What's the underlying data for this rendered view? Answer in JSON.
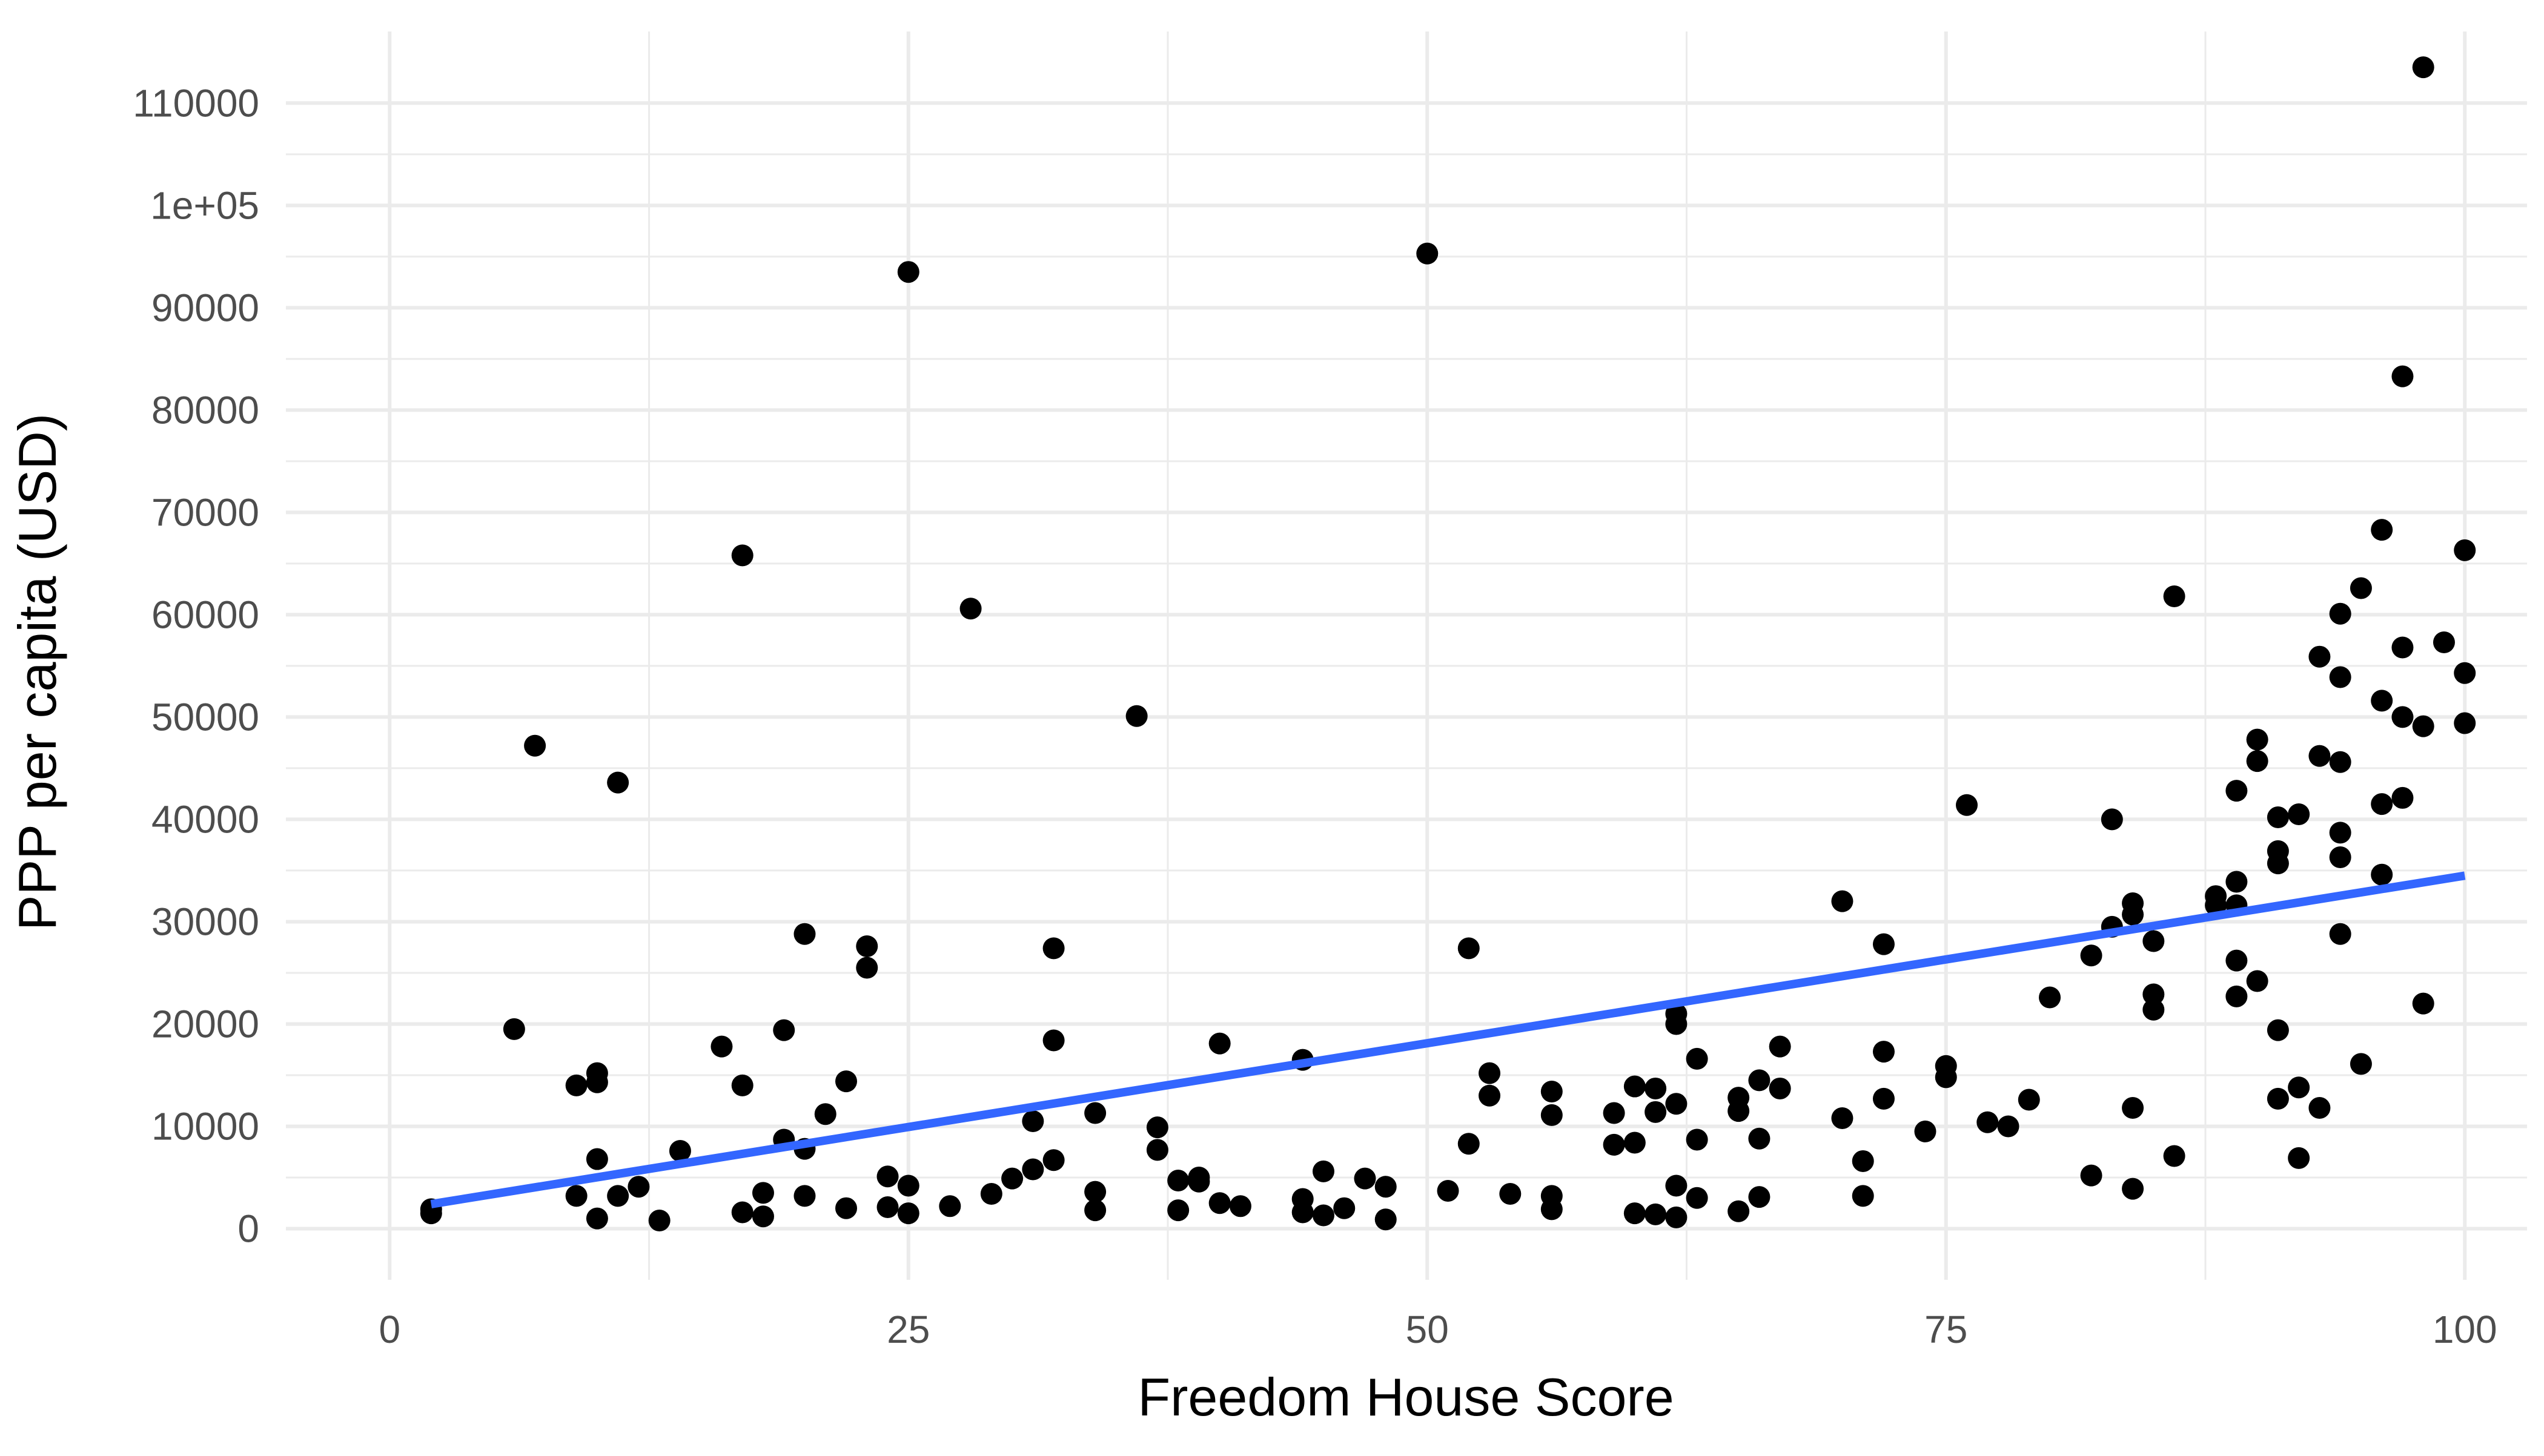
{
  "chart_data": {
    "type": "scatter",
    "title": "",
    "xlabel": "Freedom House Score",
    "ylabel": "PPP per capita (USD)",
    "xlim": [
      -5,
      103
    ],
    "ylim": [
      -5000,
      117000
    ],
    "x_ticks": [
      0,
      25,
      50,
      75,
      100
    ],
    "x_tick_labels": [
      "0",
      "25",
      "50",
      "75",
      "100"
    ],
    "y_ticks": [
      0,
      10000,
      20000,
      30000,
      40000,
      50000,
      60000,
      70000,
      80000,
      90000,
      100000,
      110000
    ],
    "y_tick_labels": [
      "0",
      "10000",
      "20000",
      "30000",
      "40000",
      "50000",
      "60000",
      "70000",
      "80000",
      "90000",
      "1e+05",
      "110000"
    ],
    "grid": true,
    "point_color": "#000000",
    "trend_color": "#3366ff",
    "trend_line": {
      "x": [
        2,
        100
      ],
      "y": [
        2400,
        34500
      ]
    },
    "points": [
      [
        2,
        1500
      ],
      [
        2,
        1900
      ],
      [
        6,
        19500
      ],
      [
        7,
        47200
      ],
      [
        9,
        14000
      ],
      [
        9,
        3200
      ],
      [
        10,
        15200
      ],
      [
        10,
        14300
      ],
      [
        10,
        6800
      ],
      [
        10,
        1000
      ],
      [
        11,
        43600
      ],
      [
        11,
        3200
      ],
      [
        12,
        4100
      ],
      [
        13,
        800
      ],
      [
        14,
        7600
      ],
      [
        16,
        17800
      ],
      [
        17,
        65800
      ],
      [
        17,
        14000
      ],
      [
        17,
        1600
      ],
      [
        18,
        3500
      ],
      [
        18,
        1200
      ],
      [
        19,
        19400
      ],
      [
        19,
        8700
      ],
      [
        20,
        28800
      ],
      [
        20,
        7800
      ],
      [
        20,
        3200
      ],
      [
        21,
        11200
      ],
      [
        22,
        14400
      ],
      [
        22,
        2000
      ],
      [
        23,
        27600
      ],
      [
        23,
        25500
      ],
      [
        24,
        5100
      ],
      [
        24,
        2100
      ],
      [
        25,
        93500
      ],
      [
        25,
        4200
      ],
      [
        25,
        1500
      ],
      [
        27,
        2200
      ],
      [
        28,
        60600
      ],
      [
        29,
        3400
      ],
      [
        30,
        4900
      ],
      [
        31,
        10500
      ],
      [
        31,
        5800
      ],
      [
        32,
        27400
      ],
      [
        32,
        18400
      ],
      [
        32,
        6700
      ],
      [
        34,
        11300
      ],
      [
        34,
        3600
      ],
      [
        34,
        1800
      ],
      [
        36,
        50100
      ],
      [
        37,
        9900
      ],
      [
        37,
        7700
      ],
      [
        38,
        4700
      ],
      [
        38,
        1800
      ],
      [
        39,
        5000
      ],
      [
        39,
        4600
      ],
      [
        40,
        18100
      ],
      [
        40,
        2500
      ],
      [
        41,
        2200
      ],
      [
        44,
        16500
      ],
      [
        44,
        2900
      ],
      [
        44,
        1600
      ],
      [
        45,
        5600
      ],
      [
        45,
        1300
      ],
      [
        46,
        2000
      ],
      [
        47,
        4900
      ],
      [
        48,
        4100
      ],
      [
        48,
        900
      ],
      [
        50,
        95300
      ],
      [
        51,
        3700
      ],
      [
        52,
        27400
      ],
      [
        52,
        8300
      ],
      [
        53,
        15200
      ],
      [
        53,
        13000
      ],
      [
        54,
        3400
      ],
      [
        56,
        13400
      ],
      [
        56,
        11100
      ],
      [
        56,
        3200
      ],
      [
        56,
        1900
      ],
      [
        59,
        11300
      ],
      [
        59,
        8200
      ],
      [
        60,
        13900
      ],
      [
        60,
        8400
      ],
      [
        60,
        1500
      ],
      [
        61,
        13700
      ],
      [
        61,
        11400
      ],
      [
        61,
        1400
      ],
      [
        62,
        21000
      ],
      [
        62,
        20000
      ],
      [
        62,
        12200
      ],
      [
        62,
        4200
      ],
      [
        62,
        1100
      ],
      [
        63,
        16600
      ],
      [
        63,
        8700
      ],
      [
        63,
        3000
      ],
      [
        65,
        12800
      ],
      [
        65,
        11500
      ],
      [
        65,
        1700
      ],
      [
        66,
        14500
      ],
      [
        66,
        8800
      ],
      [
        66,
        3100
      ],
      [
        67,
        17800
      ],
      [
        67,
        13700
      ],
      [
        70,
        32000
      ],
      [
        70,
        10800
      ],
      [
        71,
        6600
      ],
      [
        71,
        3200
      ],
      [
        72,
        27800
      ],
      [
        72,
        17300
      ],
      [
        72,
        12700
      ],
      [
        74,
        9500
      ],
      [
        75,
        15900
      ],
      [
        75,
        14800
      ],
      [
        76,
        41400
      ],
      [
        77,
        10400
      ],
      [
        78,
        10000
      ],
      [
        79,
        12600
      ],
      [
        80,
        22600
      ],
      [
        82,
        26700
      ],
      [
        82,
        5200
      ],
      [
        83,
        40000
      ],
      [
        83,
        29500
      ],
      [
        84,
        31800
      ],
      [
        84,
        30700
      ],
      [
        84,
        11800
      ],
      [
        84,
        3900
      ],
      [
        85,
        28100
      ],
      [
        85,
        22900
      ],
      [
        85,
        21400
      ],
      [
        86,
        61800
      ],
      [
        86,
        7100
      ],
      [
        88,
        32500
      ],
      [
        88,
        31600
      ],
      [
        89,
        42800
      ],
      [
        89,
        33900
      ],
      [
        89,
        31600
      ],
      [
        89,
        26200
      ],
      [
        89,
        22700
      ],
      [
        90,
        47800
      ],
      [
        90,
        45700
      ],
      [
        90,
        24200
      ],
      [
        91,
        40200
      ],
      [
        91,
        36900
      ],
      [
        91,
        35700
      ],
      [
        91,
        19400
      ],
      [
        91,
        12700
      ],
      [
        92,
        40500
      ],
      [
        92,
        13800
      ],
      [
        92,
        6900
      ],
      [
        93,
        55900
      ],
      [
        93,
        46200
      ],
      [
        93,
        11800
      ],
      [
        94,
        60100
      ],
      [
        94,
        53900
      ],
      [
        94,
        45600
      ],
      [
        94,
        38700
      ],
      [
        94,
        36300
      ],
      [
        94,
        28800
      ],
      [
        95,
        62600
      ],
      [
        95,
        16100
      ],
      [
        96,
        68300
      ],
      [
        96,
        51600
      ],
      [
        96,
        41500
      ],
      [
        96,
        34600
      ],
      [
        97,
        83300
      ],
      [
        97,
        56800
      ],
      [
        97,
        50000
      ],
      [
        97,
        42100
      ],
      [
        98,
        113500
      ],
      [
        98,
        49100
      ],
      [
        98,
        22000
      ],
      [
        99,
        57300
      ],
      [
        100,
        66300
      ],
      [
        100,
        54300
      ],
      [
        100,
        49400
      ]
    ]
  }
}
